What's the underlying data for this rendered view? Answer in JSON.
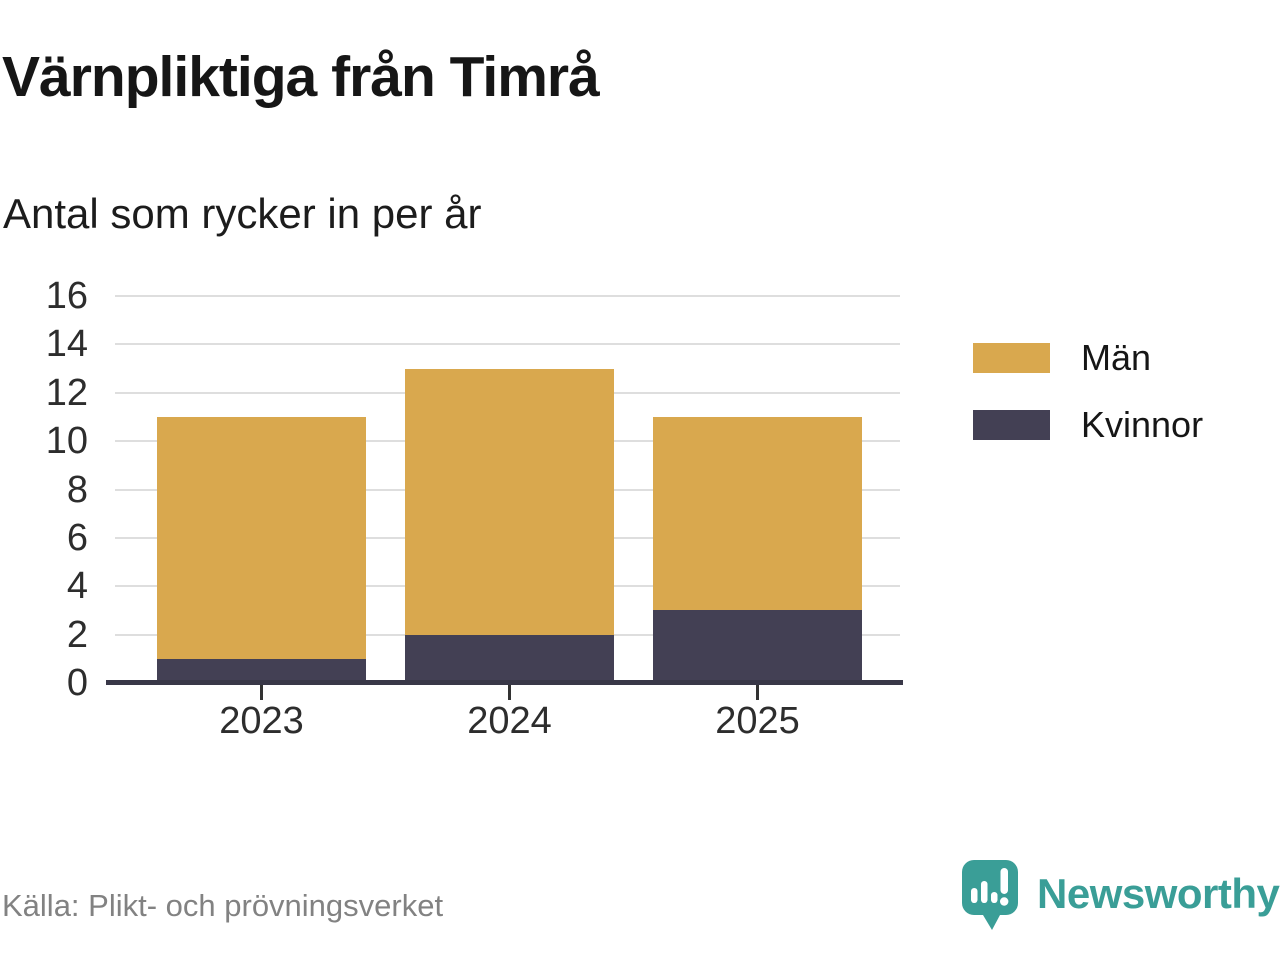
{
  "title": "Värnpliktiga från Timrå",
  "subtitle": "Antal som rycker in per år",
  "source": "Källa: Plikt- och prövningsverket",
  "brand": {
    "name": "Newsworthy",
    "color": "#3A9E97"
  },
  "colors": {
    "grid": "#DEDEDE",
    "axis": "#393848",
    "tick_text": "#2D2D2D",
    "men": "#D9A84E",
    "women": "#434054"
  },
  "chart_data": {
    "type": "bar",
    "stacked": true,
    "title": "Värnpliktiga från Timrå",
    "subtitle": "Antal som rycker in per år",
    "categories": [
      "2023",
      "2024",
      "2025"
    ],
    "series": [
      {
        "name": "Män",
        "color": "#D9A84E",
        "values": [
          10,
          11,
          8
        ]
      },
      {
        "name": "Kvinnor",
        "color": "#434054",
        "values": [
          1,
          2,
          3
        ]
      }
    ],
    "stack_order_bottom_to_top": [
      "Kvinnor",
      "Män"
    ],
    "totals": [
      11,
      13,
      11
    ],
    "xlabel": "",
    "ylabel": "",
    "ylim": [
      0,
      16
    ],
    "yticks": [
      0,
      2,
      4,
      6,
      8,
      10,
      12,
      14,
      16
    ],
    "grid": true,
    "legend_position": "right"
  }
}
